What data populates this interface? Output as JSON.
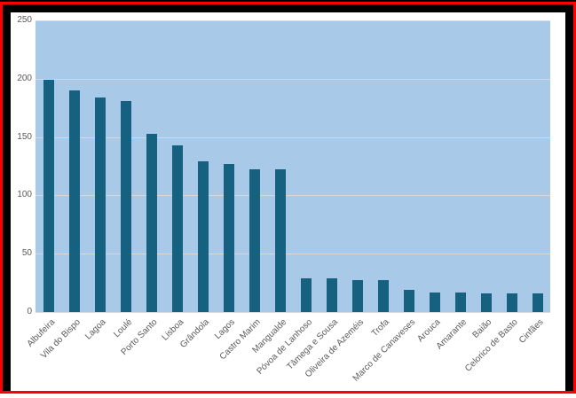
{
  "frame": {
    "outer_border_color": "#ff0000",
    "inner_frame_color": "#000000",
    "chart_background": "#ffffff"
  },
  "chart_data": {
    "type": "bar",
    "title": "",
    "xlabel": "",
    "ylabel": "",
    "categories": [
      "Albufeira",
      "Vila do Bispo",
      "Lagoa",
      "Loulé",
      "Porto Santo",
      "Lisboa",
      "Grândola",
      "Lagos",
      "Castro Marim",
      "Mangualde",
      "Póvoa de Lanhoso",
      "Tâmega e Sousa",
      "Oliveira de Azeméis",
      "Trofa",
      "Marco de Canaveses",
      "Arouca",
      "Amarante",
      "Baião",
      "Celorico de Basto",
      "Cinfães"
    ],
    "values": [
      199,
      190,
      184,
      181,
      153,
      143,
      129,
      127,
      122,
      122,
      29,
      29,
      27,
      27,
      19,
      17,
      17,
      16,
      16,
      16
    ],
    "ylim": [
      0,
      250
    ],
    "yticks": [
      0,
      50,
      100,
      150,
      200,
      250
    ],
    "grid": true,
    "legend": false,
    "x_label_rotation_deg": 45,
    "colors": {
      "bar": "#166080",
      "plot_bg": "#a9c9e8",
      "gridline": "#d9d9d9",
      "axis_label": "#595959"
    }
  }
}
